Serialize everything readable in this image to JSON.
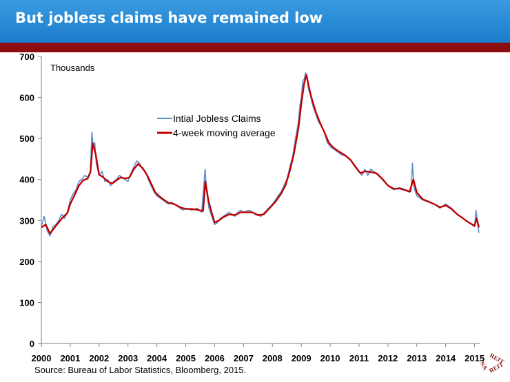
{
  "header": {
    "title": "But jobless claims have remained low"
  },
  "footer": {
    "source": "Source: Bureau of Labor Statistics, Bloomberg, 2015."
  },
  "logo": {
    "text": "REIT NAREIT",
    "color": "#8b1a1a"
  },
  "colors": {
    "header": "#2a8cd8",
    "rule": "#8b0d0d",
    "claims": "#5b8fd0",
    "average": "#c00000"
  },
  "chart_data": {
    "type": "line",
    "unit_label": "Thousands",
    "xlim": [
      2000,
      2015.2
    ],
    "ylim": [
      0,
      700
    ],
    "x_ticks": [
      2000,
      2001,
      2002,
      2003,
      2004,
      2005,
      2006,
      2007,
      2008,
      2009,
      2010,
      2011,
      2012,
      2013,
      2014,
      2015
    ],
    "y_ticks": [
      0,
      100,
      200,
      300,
      400,
      500,
      600,
      700
    ],
    "grid": false,
    "legend_position": "top-center",
    "series": [
      {
        "name": "Intial Jobless Claims",
        "color": "#5b8fd0",
        "points": [
          [
            2000.0,
            285
          ],
          [
            2000.1,
            310
          ],
          [
            2000.2,
            275
          ],
          [
            2000.3,
            262
          ],
          [
            2000.4,
            285
          ],
          [
            2000.5,
            290
          ],
          [
            2000.6,
            300
          ],
          [
            2000.7,
            315
          ],
          [
            2000.8,
            305
          ],
          [
            2000.9,
            320
          ],
          [
            2001.0,
            350
          ],
          [
            2001.1,
            365
          ],
          [
            2001.2,
            375
          ],
          [
            2001.3,
            395
          ],
          [
            2001.4,
            400
          ],
          [
            2001.5,
            410
          ],
          [
            2001.6,
            405
          ],
          [
            2001.7,
            420
          ],
          [
            2001.75,
            515
          ],
          [
            2001.8,
            480
          ],
          [
            2001.85,
            490
          ],
          [
            2001.9,
            440
          ],
          [
            2002.0,
            410
          ],
          [
            2002.1,
            420
          ],
          [
            2002.2,
            395
          ],
          [
            2002.3,
            400
          ],
          [
            2002.4,
            385
          ],
          [
            2002.5,
            395
          ],
          [
            2002.6,
            400
          ],
          [
            2002.7,
            410
          ],
          [
            2002.8,
            405
          ],
          [
            2002.9,
            400
          ],
          [
            2003.0,
            395
          ],
          [
            2003.1,
            415
          ],
          [
            2003.2,
            430
          ],
          [
            2003.3,
            445
          ],
          [
            2003.4,
            440
          ],
          [
            2003.5,
            425
          ],
          [
            2003.6,
            420
          ],
          [
            2003.7,
            400
          ],
          [
            2003.8,
            385
          ],
          [
            2003.9,
            370
          ],
          [
            2004.0,
            360
          ],
          [
            2004.1,
            355
          ],
          [
            2004.2,
            350
          ],
          [
            2004.3,
            345
          ],
          [
            2004.4,
            340
          ],
          [
            2004.5,
            345
          ],
          [
            2004.6,
            340
          ],
          [
            2004.7,
            335
          ],
          [
            2004.8,
            330
          ],
          [
            2004.9,
            325
          ],
          [
            2005.0,
            330
          ],
          [
            2005.2,
            325
          ],
          [
            2005.4,
            330
          ],
          [
            2005.55,
            320
          ],
          [
            2005.67,
            425
          ],
          [
            2005.72,
            375
          ],
          [
            2005.8,
            330
          ],
          [
            2005.9,
            310
          ],
          [
            2006.0,
            290
          ],
          [
            2006.1,
            295
          ],
          [
            2006.2,
            305
          ],
          [
            2006.3,
            310
          ],
          [
            2006.4,
            315
          ],
          [
            2006.5,
            320
          ],
          [
            2006.6,
            315
          ],
          [
            2006.7,
            310
          ],
          [
            2006.8,
            320
          ],
          [
            2006.9,
            325
          ],
          [
            2007.0,
            320
          ],
          [
            2007.2,
            325
          ],
          [
            2007.4,
            315
          ],
          [
            2007.6,
            310
          ],
          [
            2007.8,
            325
          ],
          [
            2008.0,
            340
          ],
          [
            2008.1,
            350
          ],
          [
            2008.2,
            360
          ],
          [
            2008.3,
            370
          ],
          [
            2008.4,
            385
          ],
          [
            2008.5,
            400
          ],
          [
            2008.6,
            430
          ],
          [
            2008.7,
            455
          ],
          [
            2008.8,
            500
          ],
          [
            2008.9,
            540
          ],
          [
            2008.95,
            580
          ],
          [
            2009.0,
            600
          ],
          [
            2009.05,
            640
          ],
          [
            2009.1,
            645
          ],
          [
            2009.15,
            660
          ],
          [
            2009.2,
            645
          ],
          [
            2009.25,
            620
          ],
          [
            2009.3,
            610
          ],
          [
            2009.4,
            580
          ],
          [
            2009.5,
            560
          ],
          [
            2009.6,
            540
          ],
          [
            2009.7,
            530
          ],
          [
            2009.8,
            515
          ],
          [
            2009.9,
            490
          ],
          [
            2010.0,
            480
          ],
          [
            2010.2,
            470
          ],
          [
            2010.4,
            460
          ],
          [
            2010.6,
            455
          ],
          [
            2010.8,
            440
          ],
          [
            2011.0,
            420
          ],
          [
            2011.1,
            410
          ],
          [
            2011.2,
            425
          ],
          [
            2011.3,
            410
          ],
          [
            2011.4,
            425
          ],
          [
            2011.5,
            420
          ],
          [
            2011.6,
            415
          ],
          [
            2011.8,
            400
          ],
          [
            2012.0,
            385
          ],
          [
            2012.2,
            375
          ],
          [
            2012.4,
            380
          ],
          [
            2012.6,
            375
          ],
          [
            2012.8,
            370
          ],
          [
            2012.85,
            440
          ],
          [
            2012.9,
            380
          ],
          [
            2013.0,
            360
          ],
          [
            2013.2,
            350
          ],
          [
            2013.4,
            345
          ],
          [
            2013.6,
            340
          ],
          [
            2013.8,
            330
          ],
          [
            2014.0,
            340
          ],
          [
            2014.2,
            330
          ],
          [
            2014.4,
            315
          ],
          [
            2014.6,
            305
          ],
          [
            2014.8,
            295
          ],
          [
            2015.0,
            285
          ],
          [
            2015.05,
            325
          ],
          [
            2015.1,
            295
          ],
          [
            2015.15,
            270
          ]
        ]
      },
      {
        "name": "4-week moving average",
        "color": "#c00000",
        "points": [
          [
            2000.0,
            283
          ],
          [
            2000.15,
            290
          ],
          [
            2000.3,
            268
          ],
          [
            2000.45,
            282
          ],
          [
            2000.6,
            295
          ],
          [
            2000.75,
            308
          ],
          [
            2000.9,
            318
          ],
          [
            2001.0,
            340
          ],
          [
            2001.15,
            362
          ],
          [
            2001.3,
            385
          ],
          [
            2001.45,
            398
          ],
          [
            2001.6,
            402
          ],
          [
            2001.7,
            418
          ],
          [
            2001.78,
            488
          ],
          [
            2001.88,
            462
          ],
          [
            2002.0,
            412
          ],
          [
            2002.15,
            405
          ],
          [
            2002.3,
            395
          ],
          [
            2002.45,
            390
          ],
          [
            2002.6,
            398
          ],
          [
            2002.75,
            405
          ],
          [
            2002.9,
            402
          ],
          [
            2003.05,
            405
          ],
          [
            2003.2,
            425
          ],
          [
            2003.35,
            438
          ],
          [
            2003.5,
            428
          ],
          [
            2003.65,
            412
          ],
          [
            2003.8,
            390
          ],
          [
            2003.95,
            368
          ],
          [
            2004.1,
            358
          ],
          [
            2004.25,
            350
          ],
          [
            2004.4,
            343
          ],
          [
            2004.6,
            340
          ],
          [
            2004.8,
            332
          ],
          [
            2005.0,
            328
          ],
          [
            2005.2,
            328
          ],
          [
            2005.4,
            326
          ],
          [
            2005.6,
            323
          ],
          [
            2005.68,
            395
          ],
          [
            2005.78,
            350
          ],
          [
            2005.9,
            318
          ],
          [
            2006.0,
            295
          ],
          [
            2006.15,
            300
          ],
          [
            2006.3,
            308
          ],
          [
            2006.5,
            315
          ],
          [
            2006.7,
            313
          ],
          [
            2006.9,
            320
          ],
          [
            2007.1,
            320
          ],
          [
            2007.3,
            320
          ],
          [
            2007.5,
            313
          ],
          [
            2007.7,
            315
          ],
          [
            2007.9,
            330
          ],
          [
            2008.1,
            345
          ],
          [
            2008.3,
            365
          ],
          [
            2008.45,
            385
          ],
          [
            2008.6,
            420
          ],
          [
            2008.75,
            465
          ],
          [
            2008.9,
            525
          ],
          [
            2009.0,
            585
          ],
          [
            2009.1,
            635
          ],
          [
            2009.18,
            655
          ],
          [
            2009.25,
            630
          ],
          [
            2009.35,
            600
          ],
          [
            2009.5,
            565
          ],
          [
            2009.65,
            538
          ],
          [
            2009.8,
            515
          ],
          [
            2009.95,
            490
          ],
          [
            2010.1,
            478
          ],
          [
            2010.3,
            468
          ],
          [
            2010.5,
            460
          ],
          [
            2010.7,
            448
          ],
          [
            2010.9,
            428
          ],
          [
            2011.05,
            415
          ],
          [
            2011.2,
            420
          ],
          [
            2011.4,
            418
          ],
          [
            2011.6,
            415
          ],
          [
            2011.8,
            402
          ],
          [
            2012.0,
            385
          ],
          [
            2012.2,
            377
          ],
          [
            2012.4,
            378
          ],
          [
            2012.6,
            374
          ],
          [
            2012.75,
            370
          ],
          [
            2012.88,
            400
          ],
          [
            2013.0,
            368
          ],
          [
            2013.2,
            352
          ],
          [
            2013.4,
            346
          ],
          [
            2013.6,
            340
          ],
          [
            2013.8,
            332
          ],
          [
            2014.0,
            337
          ],
          [
            2014.2,
            328
          ],
          [
            2014.4,
            315
          ],
          [
            2014.6,
            305
          ],
          [
            2014.8,
            295
          ],
          [
            2015.0,
            287
          ],
          [
            2015.07,
            305
          ],
          [
            2015.15,
            283
          ]
        ]
      }
    ]
  }
}
